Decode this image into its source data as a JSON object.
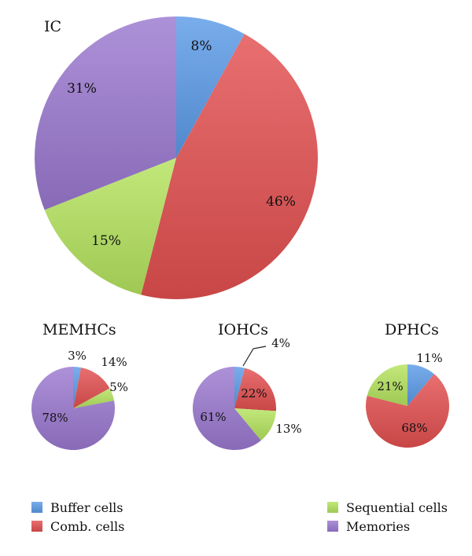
{
  "colors": {
    "buffer": "#5b9be8",
    "comb": "#e34f50",
    "sequential": "#b5e35e",
    "memories": "#9b79d0"
  },
  "legend": [
    {
      "key": "buffer",
      "label": "Buffer cells"
    },
    {
      "key": "comb",
      "label": "Comb. cells"
    },
    {
      "key": "sequential",
      "label": "Sequential cells"
    },
    {
      "key": "memories",
      "label": "Memories"
    }
  ],
  "chart_data": [
    {
      "type": "pie",
      "title": "IC",
      "categories": [
        "Buffer cells",
        "Comb. cells",
        "Sequential cells",
        "Memories"
      ],
      "values": [
        8,
        46,
        15,
        31
      ],
      "labels": [
        "8%",
        "46%",
        "15%",
        "31%"
      ]
    },
    {
      "type": "pie",
      "title": "MEMHCs",
      "categories": [
        "Buffer cells",
        "Comb. cells",
        "Sequential cells",
        "Memories"
      ],
      "values": [
        3,
        14,
        5,
        78
      ],
      "labels": [
        "3%",
        "14%",
        "5%",
        "78%"
      ]
    },
    {
      "type": "pie",
      "title": "IOHCs",
      "categories": [
        "Buffer cells",
        "Comb. cells",
        "Sequential cells",
        "Memories"
      ],
      "values": [
        4,
        22,
        13,
        61
      ],
      "labels": [
        "4%",
        "22%",
        "13%",
        "61%"
      ]
    },
    {
      "type": "pie",
      "title": "DPHCs",
      "categories": [
        "Buffer cells",
        "Comb. cells",
        "Sequential cells"
      ],
      "values": [
        11,
        68,
        21
      ],
      "labels": [
        "11%",
        "68%",
        "21%"
      ]
    }
  ]
}
